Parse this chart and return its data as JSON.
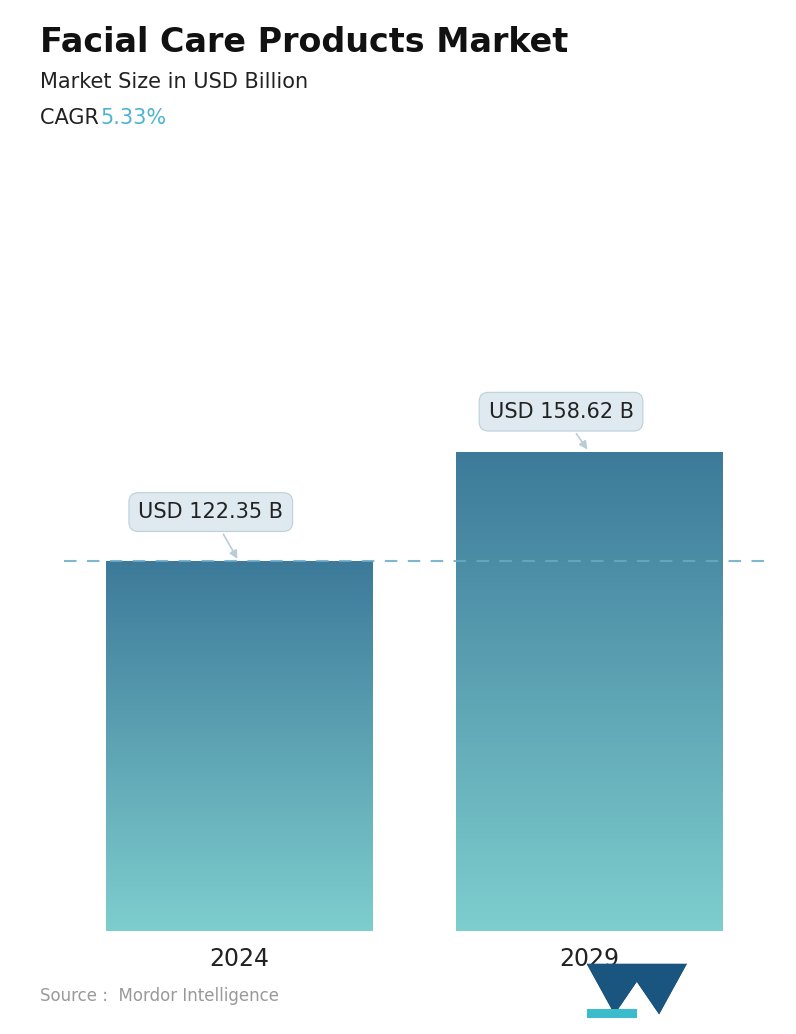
{
  "title": "Facial Care Products Market",
  "subtitle": "Market Size in USD Billion",
  "cagr_label": "CAGR ",
  "cagr_value": "5.33%",
  "cagr_color": "#4db3d4",
  "categories": [
    "2024",
    "2029"
  ],
  "values": [
    122.35,
    158.62
  ],
  "bar_labels": [
    "USD 122.35 B",
    "USD 158.62 B"
  ],
  "bar_color_top": "#3d7a9a",
  "bar_color_bottom": "#7ecece",
  "dashed_line_color": "#6aaac8",
  "dashed_line_y": 122.35,
  "source_text": "Source :  Mordor Intelligence",
  "source_color": "#999999",
  "background_color": "#ffffff",
  "ylim": [
    0,
    185
  ],
  "bar_width": 0.38,
  "title_fontsize": 24,
  "subtitle_fontsize": 15,
  "cagr_fontsize": 15,
  "xlabel_fontsize": 17,
  "annotation_fontsize": 15
}
